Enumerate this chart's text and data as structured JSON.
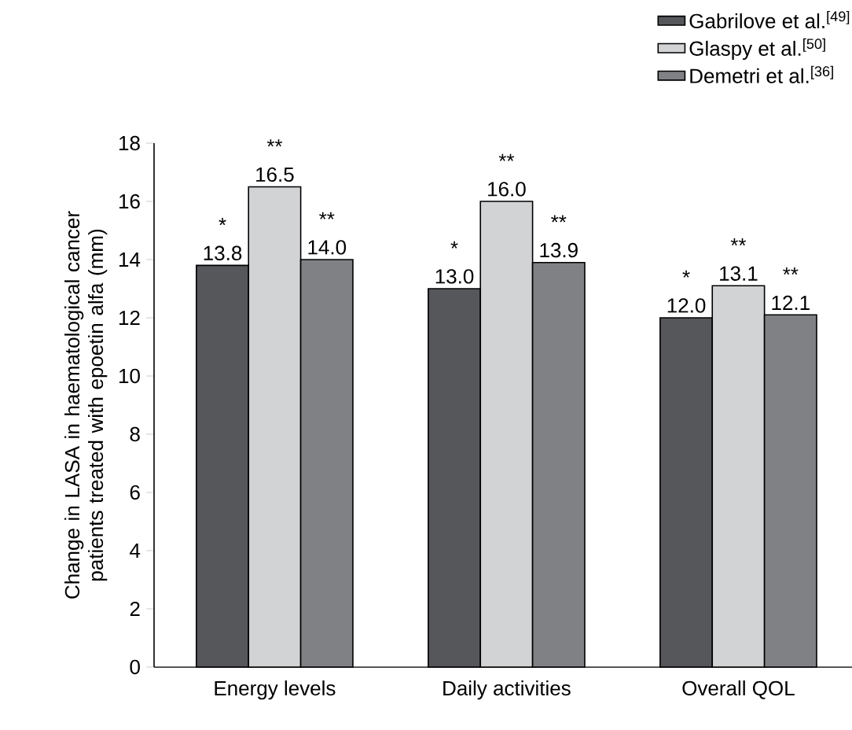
{
  "chart_data": {
    "type": "bar",
    "ylabel": "Change in LASA in haematological cancer patients treated with epoetin alfa (mm)",
    "categories": [
      "Energy levels",
      "Daily activities",
      "Overall QOL"
    ],
    "series": [
      {
        "name": "Gabrilove et al.$^{[49]}$",
        "color": "#56575a",
        "values": [
          13.8,
          13.0,
          12.0
        ],
        "value_labels": [
          "13.8",
          "13.0",
          "12.0"
        ]
      },
      {
        "name": "Glaspy et al.$^{[50]}$",
        "color": "#d2d3d5",
        "values": [
          16.5,
          16.0,
          13.1
        ],
        "value_labels": [
          "16.5",
          "16.0",
          "13.1"
        ]
      },
      {
        "name": "Demetri et al.$^{[36]}$",
        "color": "#808185",
        "values": [
          14.0,
          13.9,
          12.1
        ],
        "value_labels": [
          "14.0",
          "13.9",
          "12.1"
        ]
      }
    ],
    "annotations": [
      "*",
      "**",
      "**",
      "*",
      "**",
      "**",
      "*",
      "**",
      "**"
    ],
    "ylim": [
      0,
      18
    ],
    "yticks": [
      0,
      2,
      4,
      6,
      8,
      10,
      12,
      14,
      16,
      18
    ],
    "legend": "top right",
    "grid": false
  }
}
